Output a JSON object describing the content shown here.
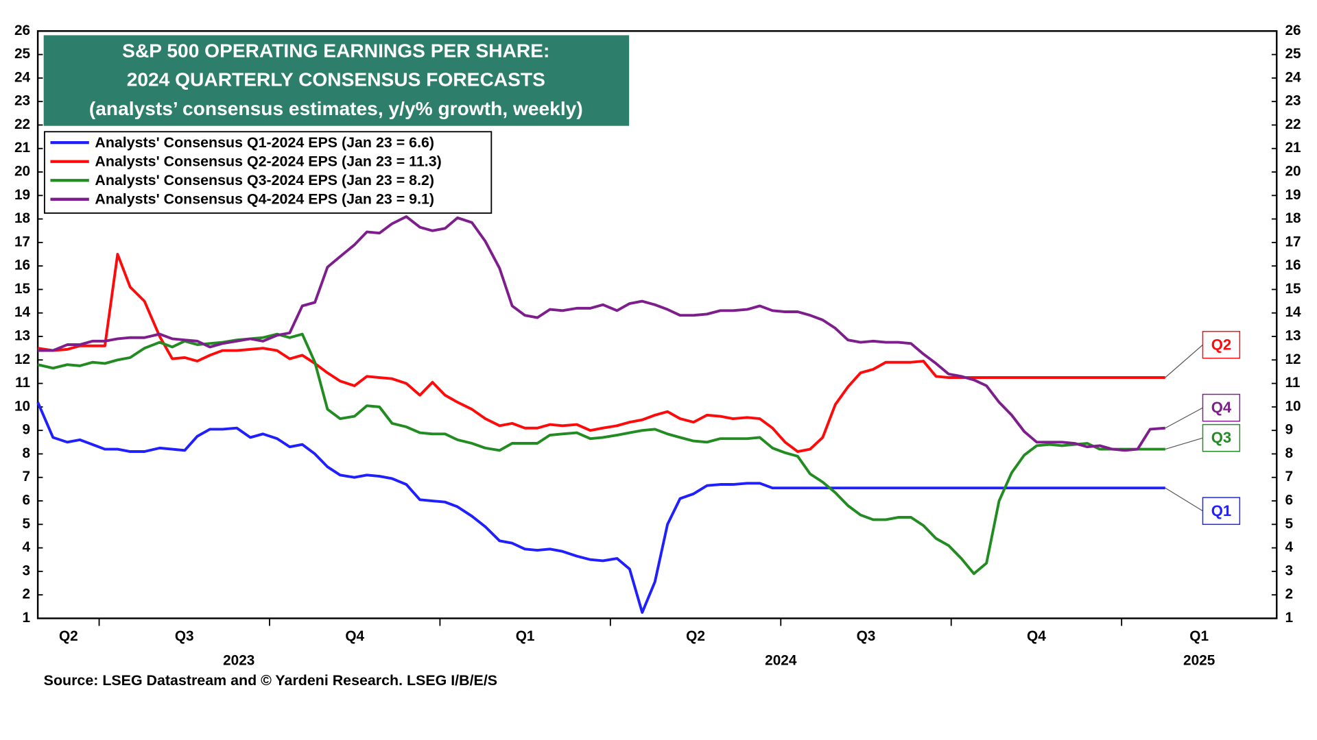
{
  "chart_data": {
    "type": "line",
    "title": [
      "S&P 500 OPERATING EARNINGS PER SHARE:",
      "2024 QUARTERLY CONSENSUS FORECASTS",
      "(analysts’ consensus estimates, y/y% growth, weekly)"
    ],
    "source": "Source: LSEG Datastream and © Yardeni Research. LSEG I/B/E/S",
    "quarters": [
      "Q2",
      "Q3",
      "Q4",
      "Q1",
      "Q2",
      "Q3",
      "Q4",
      "Q1"
    ],
    "years": [
      "2023",
      "2024",
      "2025"
    ],
    "xlim": [
      0.64,
      7.91
    ],
    "xticks": [
      1,
      2,
      3,
      4,
      5,
      6,
      7
    ],
    "ylim": [
      1,
      26
    ],
    "yticks": [
      1,
      2,
      3,
      4,
      5,
      6,
      7,
      8,
      9,
      10,
      11,
      12,
      13,
      14,
      15,
      16,
      17,
      18,
      19,
      20,
      21,
      22,
      23,
      24,
      25,
      26
    ],
    "grid": false,
    "legend": "upper left",
    "x": [
      0.64,
      0.729,
      0.813,
      0.887,
      0.961,
      1.034,
      1.108,
      1.182,
      1.266,
      1.355,
      1.429,
      1.502,
      1.576,
      1.65,
      1.724,
      1.808,
      1.887,
      1.961,
      2.044,
      2.118,
      2.192,
      2.266,
      2.34,
      2.414,
      2.498,
      2.571,
      2.645,
      2.719,
      2.803,
      2.882,
      2.956,
      3.03,
      3.103,
      3.187,
      3.266,
      3.35,
      3.424,
      3.498,
      3.571,
      3.645,
      3.719,
      3.803,
      3.882,
      3.956,
      4.039,
      4.113,
      4.187,
      4.261,
      4.335,
      4.409,
      4.488,
      4.567,
      4.645,
      4.719,
      4.803,
      4.877,
      4.951,
      5.025,
      5.099,
      5.172,
      5.246,
      5.32,
      5.394,
      5.468,
      5.542,
      5.616,
      5.69,
      5.764,
      5.837,
      5.911,
      5.985,
      6.059,
      6.133,
      6.207,
      6.281,
      6.355,
      6.429,
      6.502,
      6.576,
      6.65,
      6.724,
      6.798,
      6.872,
      6.946,
      7.02,
      7.094,
      7.167,
      7.256
    ],
    "series": [
      {
        "name": "Analysts' Consensus Q1-2024 EPS (Jan 23 = 6.6)",
        "color": "#1f1fff",
        "values": [
          10.2,
          8.7,
          8.5,
          8.6,
          8.4,
          8.2,
          8.2,
          8.1,
          8.1,
          8.25,
          8.2,
          8.15,
          8.75,
          9.05,
          9.05,
          9.1,
          8.7,
          8.85,
          8.65,
          8.3,
          8.4,
          8.0,
          7.45,
          7.1,
          7.0,
          7.1,
          7.05,
          6.95,
          6.7,
          6.05,
          6.0,
          5.95,
          5.75,
          5.35,
          4.9,
          4.3,
          4.2,
          3.95,
          3.9,
          3.95,
          3.85,
          3.65,
          3.5,
          3.45,
          3.55,
          3.1,
          1.25,
          2.55,
          5.0,
          6.1,
          6.3,
          6.65,
          6.7,
          6.7,
          6.75,
          6.75,
          6.55,
          6.55,
          6.55,
          6.55,
          6.55,
          6.55,
          6.55,
          6.55,
          6.55,
          6.55,
          6.55,
          6.55,
          6.55,
          6.55,
          6.55,
          6.55,
          6.55,
          6.55,
          6.55,
          6.55,
          6.55,
          6.55,
          6.55,
          6.55,
          6.55,
          6.55,
          6.55,
          6.55,
          6.55,
          6.55,
          6.55,
          6.55
        ]
      },
      {
        "name": "Analysts' Consensus Q2-2024 EPS (Jan 23 = 11.3)",
        "color": "#ff0a0a",
        "values": [
          12.5,
          12.4,
          12.45,
          12.6,
          12.6,
          12.6,
          16.5,
          15.1,
          14.5,
          13.0,
          12.05,
          12.1,
          11.95,
          12.2,
          12.4,
          12.4,
          12.45,
          12.5,
          12.4,
          12.05,
          12.2,
          11.85,
          11.45,
          11.1,
          10.9,
          11.3,
          11.25,
          11.2,
          11.0,
          10.5,
          11.05,
          10.5,
          10.2,
          9.9,
          9.5,
          9.2,
          9.3,
          9.1,
          9.1,
          9.25,
          9.2,
          9.25,
          9.0,
          9.1,
          9.2,
          9.35,
          9.45,
          9.65,
          9.8,
          9.5,
          9.35,
          9.65,
          9.6,
          9.5,
          9.55,
          9.5,
          9.1,
          8.5,
          8.1,
          8.2,
          8.7,
          10.1,
          10.85,
          11.45,
          11.6,
          11.9,
          11.9,
          11.9,
          11.95,
          11.3,
          11.25,
          11.25,
          11.25,
          11.25,
          11.25,
          11.25,
          11.25,
          11.25,
          11.25,
          11.25,
          11.25,
          11.25,
          11.25,
          11.25,
          11.25,
          11.25,
          11.25,
          11.25
        ]
      },
      {
        "name": "Analysts' Consensus Q3-2024 EPS (Jan 23 = 8.2)",
        "color": "#228b22",
        "values": [
          11.8,
          11.65,
          11.8,
          11.75,
          11.9,
          11.85,
          12.0,
          12.1,
          12.5,
          12.75,
          12.55,
          12.8,
          12.65,
          12.7,
          12.75,
          12.85,
          12.9,
          12.95,
          13.1,
          12.95,
          13.1,
          11.9,
          9.9,
          9.5,
          9.6,
          10.05,
          10.0,
          9.3,
          9.15,
          8.9,
          8.85,
          8.85,
          8.6,
          8.45,
          8.25,
          8.15,
          8.45,
          8.45,
          8.45,
          8.8,
          8.85,
          8.9,
          8.65,
          8.7,
          8.8,
          8.9,
          9.0,
          9.05,
          8.85,
          8.7,
          8.55,
          8.5,
          8.65,
          8.65,
          8.65,
          8.7,
          8.25,
          8.05,
          7.9,
          7.15,
          6.8,
          6.35,
          5.8,
          5.4,
          5.2,
          5.2,
          5.3,
          5.3,
          4.95,
          4.4,
          4.1,
          3.55,
          2.9,
          3.35,
          6.0,
          7.2,
          7.95,
          8.35,
          8.4,
          8.35,
          8.4,
          8.45,
          8.2,
          8.2,
          8.2,
          8.2,
          8.2,
          8.2
        ]
      },
      {
        "name": "Analysts' Consensus Q4-2024 EPS (Jan 23 = 9.1)",
        "color": "#7d1e8c",
        "values": [
          12.4,
          12.4,
          12.65,
          12.65,
          12.8,
          12.8,
          12.9,
          12.95,
          12.95,
          13.1,
          12.9,
          12.85,
          12.8,
          12.55,
          12.7,
          12.8,
          12.9,
          12.8,
          13.05,
          13.15,
          14.3,
          14.45,
          15.95,
          16.4,
          16.9,
          17.45,
          17.4,
          17.8,
          18.1,
          17.65,
          17.5,
          17.6,
          18.05,
          17.85,
          17.05,
          15.9,
          14.3,
          13.9,
          13.8,
          14.15,
          14.1,
          14.2,
          14.2,
          14.35,
          14.1,
          14.4,
          14.5,
          14.35,
          14.15,
          13.9,
          13.9,
          13.95,
          14.1,
          14.1,
          14.15,
          14.3,
          14.1,
          14.05,
          14.05,
          13.9,
          13.7,
          13.35,
          12.85,
          12.75,
          12.8,
          12.75,
          12.75,
          12.7,
          12.25,
          11.85,
          11.4,
          11.3,
          11.15,
          10.9,
          10.2,
          9.65,
          8.95,
          8.5,
          8.5,
          8.5,
          8.45,
          8.3,
          8.35,
          8.2,
          8.15,
          8.2,
          9.05,
          9.1
        ]
      }
    ],
    "annotations": [
      {
        "text": "Q2",
        "color": "#ff0a0a"
      },
      {
        "text": "Q4",
        "color": "#7d1e8c"
      },
      {
        "text": "Q3",
        "color": "#228b22"
      },
      {
        "text": "Q1",
        "color": "#1f1fff"
      }
    ]
  }
}
